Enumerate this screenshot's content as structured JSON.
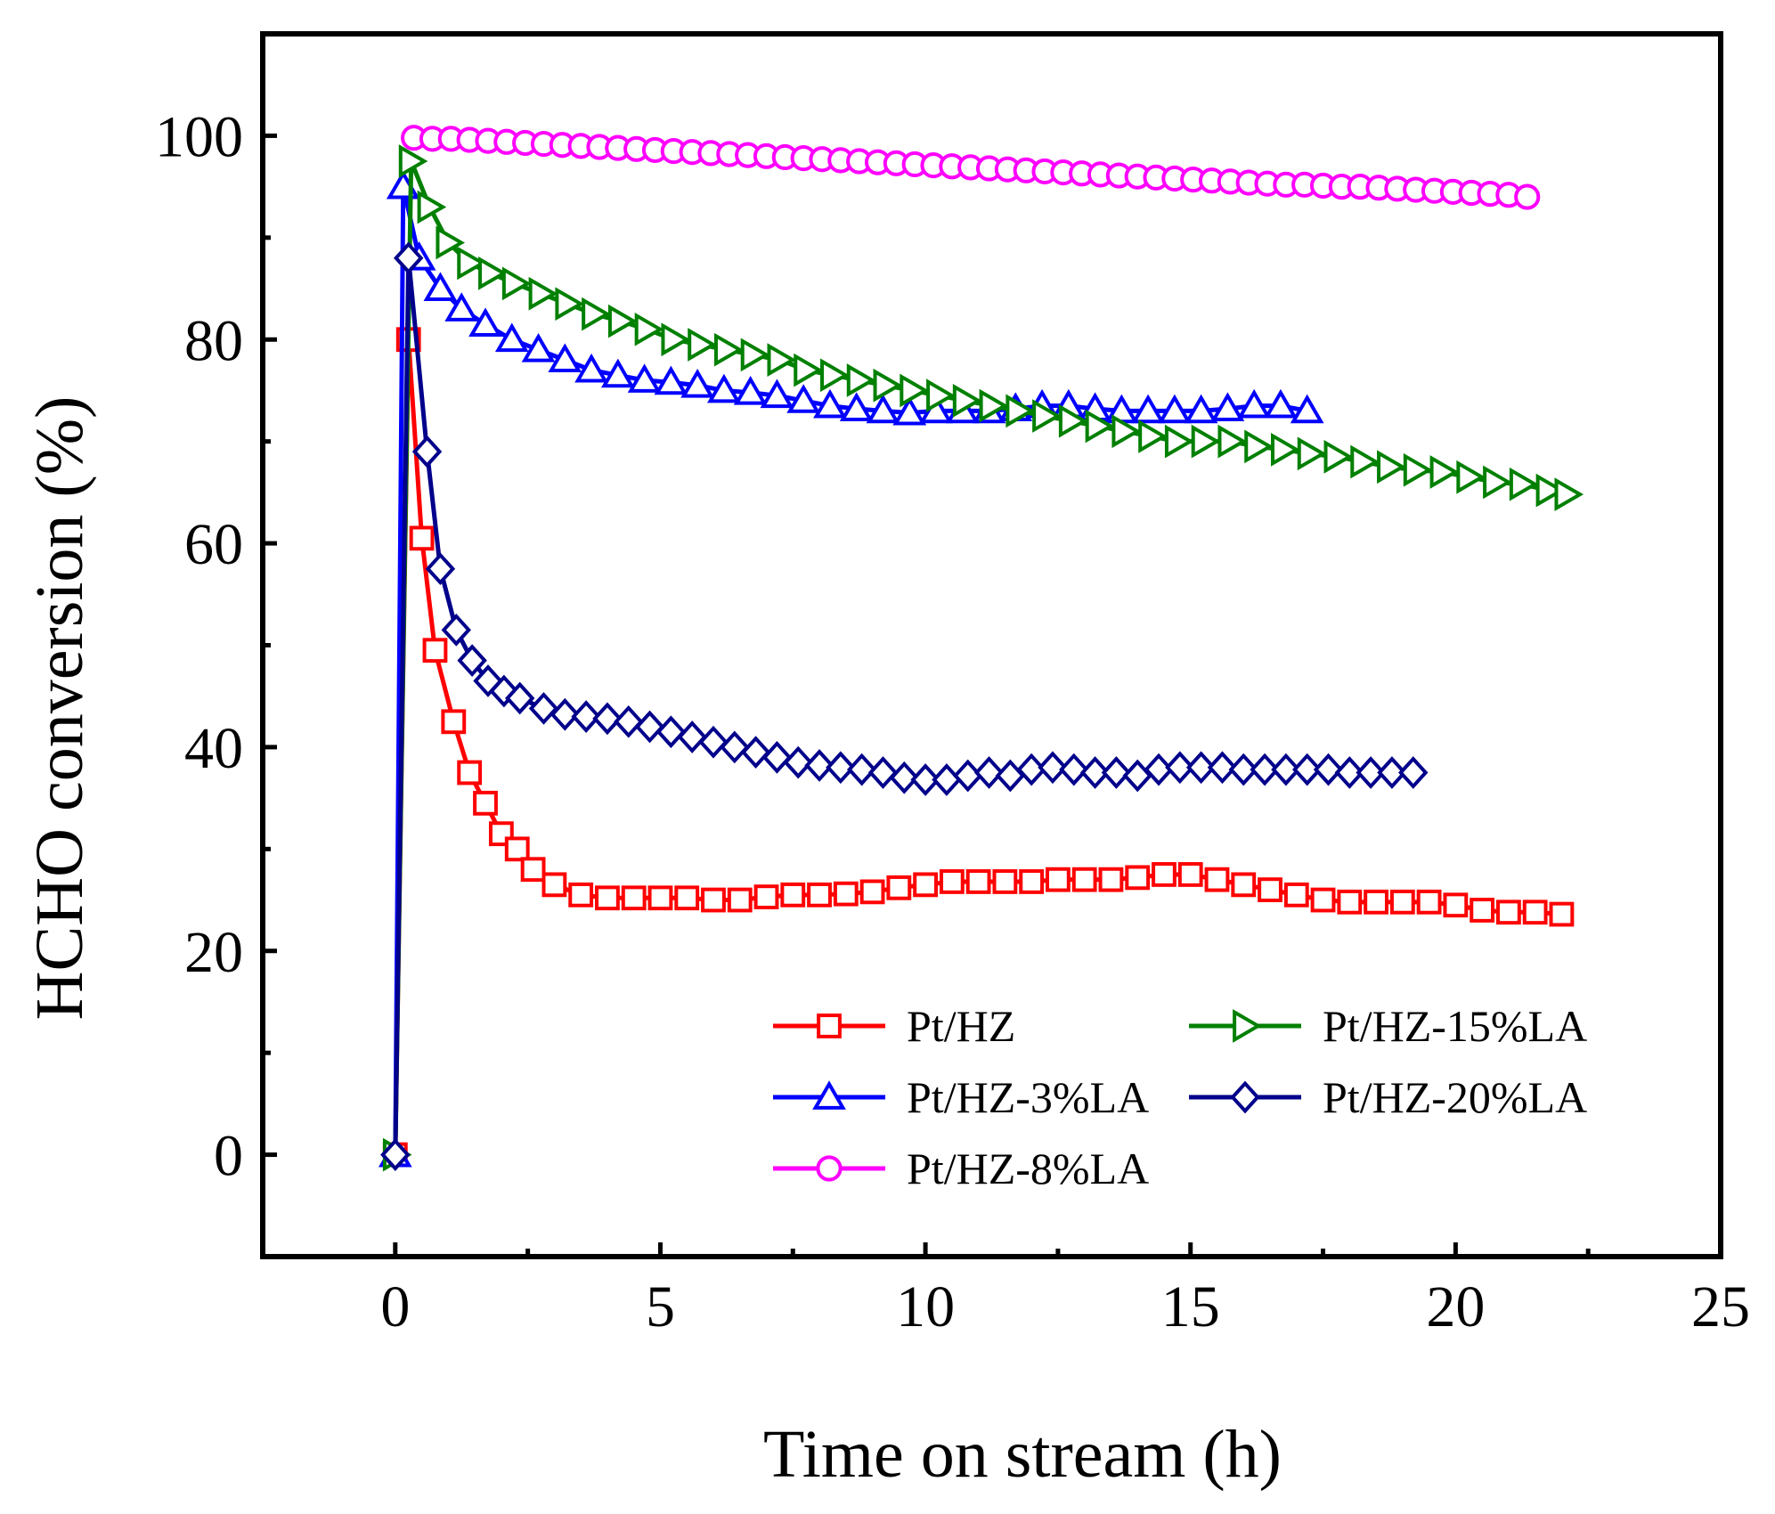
{
  "chart_data": {
    "type": "line",
    "xlabel": "Time on stream (h)",
    "ylabel": "HCHO conversion (%)",
    "xlim": [
      -2.5,
      25
    ],
    "ylim": [
      -10,
      110
    ],
    "xticks": [
      0,
      5,
      10,
      15,
      20,
      25
    ],
    "yticks": [
      0,
      20,
      40,
      60,
      80,
      100
    ],
    "x_tick_labels": [
      "0",
      "5",
      "10",
      "15",
      "20",
      "25"
    ],
    "y_tick_labels": [
      "0",
      "20",
      "40",
      "60",
      "80",
      "100"
    ],
    "legend_position": "lower-right",
    "series": [
      {
        "name": "Pt/HZ",
        "color": "#ff0000",
        "marker": "square",
        "x": [
          0,
          0.25,
          0.5,
          0.75,
          1.1,
          1.4,
          1.7,
          2.0,
          2.3,
          2.6,
          3.0,
          3.5,
          4.0,
          4.5,
          5.0,
          5.5,
          6.0,
          6.5,
          7.0,
          7.5,
          8.0,
          8.5,
          9.0,
          9.5,
          10.0,
          10.5,
          11.0,
          11.5,
          12.0,
          12.5,
          13.0,
          13.5,
          14.0,
          14.5,
          15.0,
          15.5,
          16.0,
          16.5,
          17.0,
          17.5,
          18.0,
          18.5,
          19.0,
          19.5,
          20.0,
          20.5,
          21.0,
          21.5,
          22.0
        ],
        "y": [
          0,
          80,
          60.5,
          49.5,
          42.5,
          37.5,
          34.5,
          31.5,
          30,
          28,
          26.5,
          25.5,
          25.2,
          25.2,
          25.2,
          25.2,
          25,
          25,
          25.3,
          25.5,
          25.5,
          25.6,
          25.8,
          26.2,
          26.5,
          26.8,
          26.8,
          26.8,
          26.8,
          27,
          27,
          27,
          27.2,
          27.5,
          27.5,
          27,
          26.5,
          26,
          25.5,
          25,
          24.8,
          24.8,
          24.8,
          24.8,
          24.5,
          24,
          23.8,
          23.8,
          23.6
        ]
      },
      {
        "name": "Pt/HZ-3%LA",
        "color": "#0000ff",
        "marker": "triangle-up",
        "x": [
          0,
          0.15,
          0.45,
          0.85,
          1.25,
          1.7,
          2.2,
          2.7,
          3.2,
          3.7,
          4.2,
          4.7,
          5.2,
          5.7,
          6.2,
          6.7,
          7.2,
          7.7,
          8.2,
          8.7,
          9.2,
          9.7,
          10.2,
          10.7,
          11.2,
          11.7,
          12.2,
          12.7,
          13.2,
          13.7,
          14.2,
          14.7,
          15.2,
          15.7,
          16.2,
          16.7,
          17.2
        ],
        "y": [
          0,
          95,
          88,
          85,
          83,
          81.5,
          80,
          79,
          78,
          77,
          76.5,
          76,
          75.8,
          75.5,
          75,
          74.8,
          74.5,
          74,
          73.5,
          73.2,
          73,
          72.8,
          73,
          73,
          73,
          73.2,
          73.5,
          73.5,
          73.2,
          73,
          73,
          73,
          73,
          73.2,
          73.5,
          73.5,
          73
        ]
      },
      {
        "name": "Pt/HZ-8%LA",
        "color": "#ff00ff",
        "marker": "circle",
        "x": [
          0.35,
          0.7,
          1.05,
          1.4,
          1.75,
          2.1,
          2.45,
          2.8,
          3.15,
          3.5,
          3.85,
          4.2,
          4.55,
          4.9,
          5.25,
          5.6,
          5.95,
          6.3,
          6.65,
          7.0,
          7.35,
          7.7,
          8.05,
          8.4,
          8.75,
          9.1,
          9.45,
          9.8,
          10.15,
          10.5,
          10.85,
          11.2,
          11.55,
          11.9,
          12.25,
          12.6,
          12.95,
          13.3,
          13.65,
          14.0,
          14.35,
          14.7,
          15.05,
          15.4,
          15.75,
          16.1,
          16.45,
          16.8,
          17.15,
          17.5,
          17.85,
          18.2,
          18.55,
          18.9,
          19.25,
          19.6,
          19.95,
          20.3,
          20.65,
          21.0,
          21.35
        ],
        "y": [
          99.8,
          99.7,
          99.7,
          99.6,
          99.5,
          99.4,
          99.3,
          99.2,
          99.1,
          99,
          98.9,
          98.8,
          98.7,
          98.6,
          98.5,
          98.4,
          98.3,
          98.2,
          98.1,
          98,
          97.9,
          97.8,
          97.7,
          97.6,
          97.5,
          97.4,
          97.3,
          97.2,
          97.1,
          97,
          96.9,
          96.8,
          96.7,
          96.6,
          96.5,
          96.4,
          96.3,
          96.2,
          96.1,
          96,
          95.9,
          95.8,
          95.7,
          95.6,
          95.5,
          95.4,
          95.3,
          95.2,
          95.2,
          95.1,
          95,
          95,
          94.9,
          94.8,
          94.7,
          94.6,
          94.5,
          94.4,
          94.3,
          94.2,
          94
        ]
      },
      {
        "name": "Pt/HZ-15%LA",
        "color": "#008000",
        "marker": "triangle-right",
        "x": [
          0,
          0.3,
          0.65,
          1.0,
          1.4,
          1.8,
          2.25,
          2.75,
          3.25,
          3.75,
          4.25,
          4.75,
          5.25,
          5.75,
          6.25,
          6.75,
          7.25,
          7.75,
          8.25,
          8.75,
          9.25,
          9.75,
          10.25,
          10.75,
          11.25,
          11.75,
          12.25,
          12.75,
          13.25,
          13.75,
          14.25,
          14.75,
          15.25,
          15.75,
          16.25,
          16.75,
          17.25,
          17.75,
          18.25,
          18.75,
          19.25,
          19.75,
          20.25,
          20.75,
          21.25,
          21.75,
          22.1
        ],
        "y": [
          0,
          97.5,
          93,
          89.5,
          87.5,
          86.5,
          85.5,
          84.5,
          83.5,
          82.5,
          81.8,
          81,
          80,
          79.5,
          79,
          78.5,
          78,
          77,
          76.5,
          76,
          75.5,
          75,
          74.5,
          74,
          73.5,
          73,
          72.5,
          72,
          71.5,
          71,
          70.5,
          70,
          70,
          70,
          69.5,
          69.2,
          68.8,
          68.5,
          68,
          67.5,
          67.2,
          67,
          66.5,
          66,
          65.8,
          65.2,
          64.8
        ]
      },
      {
        "name": "Pt/HZ-20%LA",
        "color": "#00008b",
        "marker": "diamond",
        "x": [
          0,
          0.25,
          0.6,
          0.85,
          1.15,
          1.45,
          1.75,
          2.05,
          2.35,
          2.8,
          3.2,
          3.6,
          4.0,
          4.4,
          4.8,
          5.2,
          5.6,
          6.0,
          6.4,
          6.8,
          7.2,
          7.6,
          8.0,
          8.4,
          8.8,
          9.2,
          9.6,
          10.0,
          10.4,
          10.8,
          11.2,
          11.6,
          12.0,
          12.4,
          12.8,
          13.2,
          13.6,
          14.0,
          14.4,
          14.8,
          15.2,
          15.6,
          16.0,
          16.4,
          16.8,
          17.2,
          17.6,
          18.0,
          18.4,
          18.8,
          19.2
        ],
        "y": [
          0,
          88,
          69,
          57.5,
          51.5,
          48.5,
          46.5,
          45.5,
          44.8,
          43.8,
          43.2,
          43,
          42.8,
          42.5,
          42,
          41.5,
          41,
          40.5,
          40,
          39.5,
          39,
          38.5,
          38.2,
          38,
          37.8,
          37.5,
          37,
          36.8,
          36.8,
          37.2,
          37.5,
          37.2,
          37.8,
          38,
          37.8,
          37.5,
          37.5,
          37.2,
          37.8,
          38,
          38,
          38,
          37.8,
          37.8,
          37.8,
          37.8,
          37.8,
          37.5,
          37.5,
          37.5,
          37.5
        ]
      }
    ]
  }
}
